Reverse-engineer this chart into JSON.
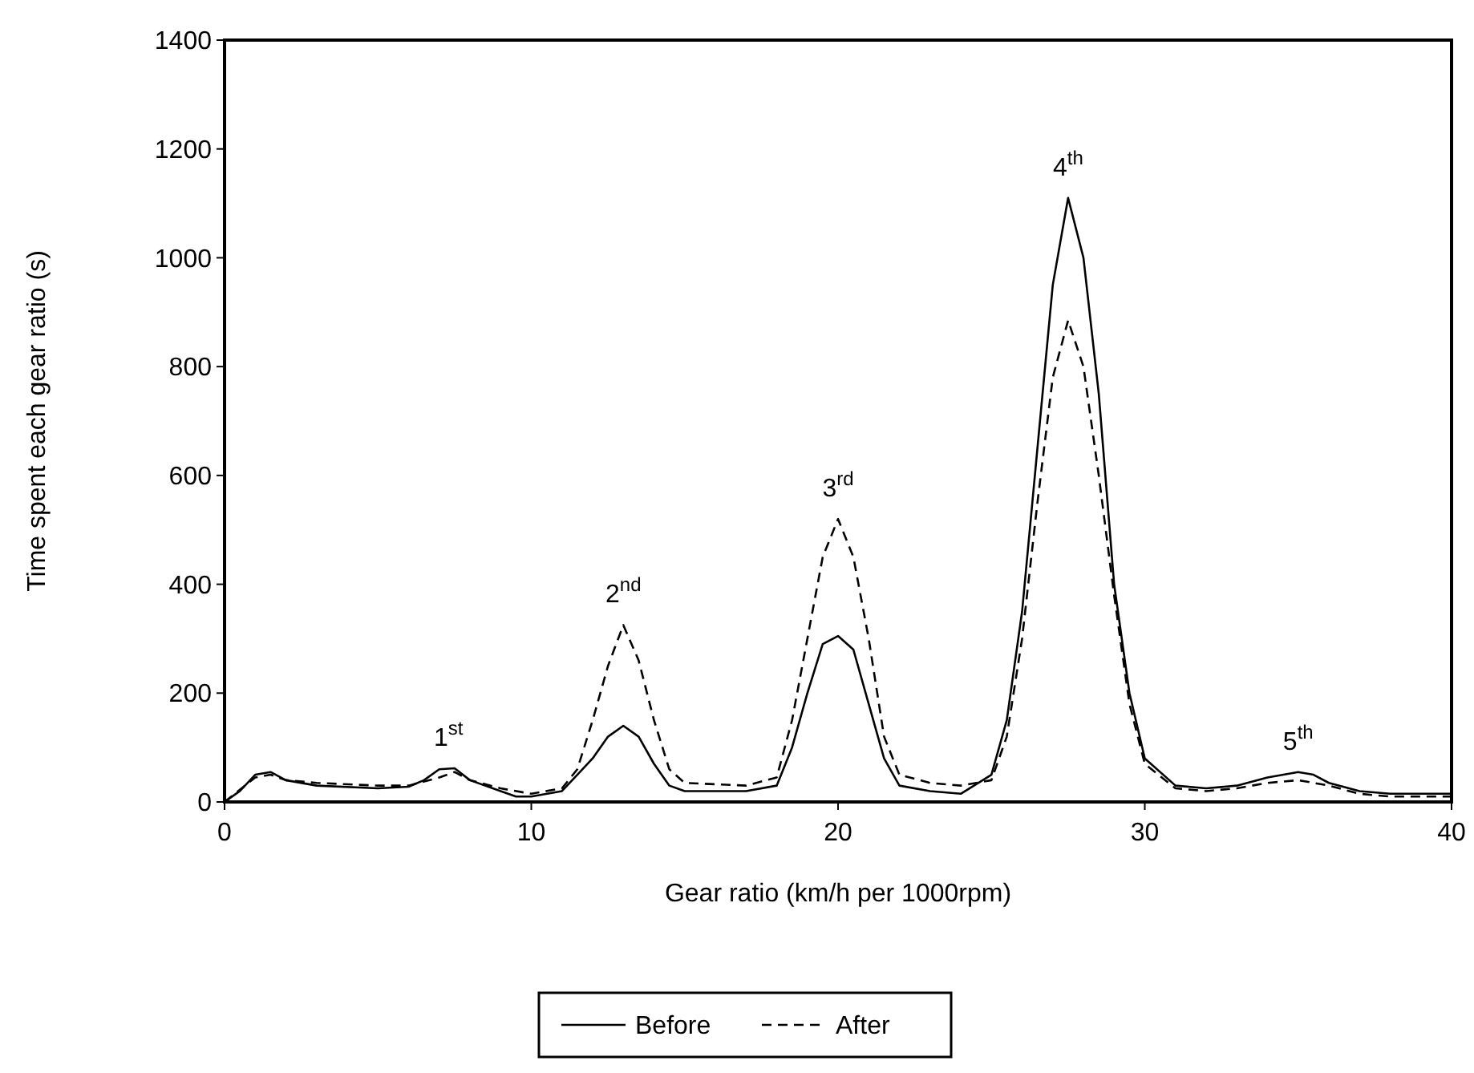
{
  "chart_data": {
    "type": "line",
    "xlabel": "Gear ratio (km/h per 1000rpm)",
    "ylabel": "Time spent each gear ratio (s)",
    "xlim": [
      0,
      40
    ],
    "ylim": [
      0,
      1400
    ],
    "xticks": [
      0,
      10,
      20,
      30,
      40
    ],
    "yticks": [
      0,
      200,
      400,
      600,
      800,
      1000,
      1200,
      1400
    ],
    "grid": false,
    "legend": "bottom",
    "series": [
      {
        "name": "Before",
        "color": "#000000",
        "line_style": "solid",
        "x": [
          0,
          0.5,
          1,
          1.5,
          2,
          3,
          5,
          6,
          6.5,
          7,
          7.5,
          8,
          9,
          9.5,
          10,
          11,
          11.5,
          12,
          12.5,
          13,
          13.5,
          14,
          14.5,
          15,
          17,
          18,
          18.5,
          19,
          19.5,
          20,
          20.5,
          21,
          21.5,
          22,
          23,
          24,
          25,
          25.5,
          26,
          26.5,
          27,
          27.5,
          28,
          28.5,
          29,
          29.5,
          30,
          31,
          32,
          33,
          34,
          35,
          35.5,
          36,
          37,
          38,
          40
        ],
        "values": [
          0,
          20,
          50,
          55,
          40,
          30,
          25,
          28,
          40,
          60,
          62,
          40,
          20,
          10,
          10,
          20,
          50,
          80,
          120,
          140,
          120,
          70,
          30,
          20,
          20,
          30,
          100,
          200,
          290,
          305,
          280,
          180,
          80,
          30,
          20,
          15,
          50,
          150,
          350,
          650,
          950,
          1110,
          1000,
          750,
          400,
          200,
          80,
          30,
          25,
          30,
          45,
          55,
          50,
          35,
          20,
          15,
          15
        ]
      },
      {
        "name": "After",
        "color": "#000000",
        "line_style": "dashed",
        "x": [
          0,
          1,
          1.5,
          2,
          3,
          5,
          6,
          7,
          7.5,
          8,
          9,
          10,
          11,
          11.5,
          12,
          12.5,
          13,
          13.5,
          14,
          14.5,
          15,
          17,
          18,
          18.5,
          19,
          19.5,
          20,
          20.5,
          21,
          21.5,
          22,
          23,
          24,
          25,
          25.5,
          26,
          26.5,
          27,
          27.5,
          28,
          28.5,
          29,
          29.5,
          30,
          31,
          32,
          33,
          34,
          35,
          36,
          37,
          38,
          40
        ],
        "values": [
          0,
          45,
          50,
          40,
          35,
          30,
          30,
          45,
          55,
          40,
          25,
          15,
          25,
          60,
          150,
          250,
          325,
          260,
          150,
          60,
          35,
          30,
          45,
          150,
          300,
          450,
          520,
          450,
          300,
          120,
          50,
          35,
          30,
          40,
          120,
          300,
          550,
          780,
          885,
          800,
          600,
          380,
          180,
          70,
          25,
          20,
          25,
          35,
          40,
          30,
          15,
          10,
          10
        ]
      }
    ],
    "annotations": [
      {
        "text": "1$^{st}$",
        "x": 7.3,
        "y": 62
      },
      {
        "text": "2$^{nd}$",
        "x": 13,
        "y": 325
      },
      {
        "text": "3$^{rd}$",
        "x": 20,
        "y": 520
      },
      {
        "text": "4$^{th}$",
        "x": 27.5,
        "y": 1110
      },
      {
        "text": "5$^{th}$",
        "x": 35,
        "y": 55
      }
    ]
  }
}
